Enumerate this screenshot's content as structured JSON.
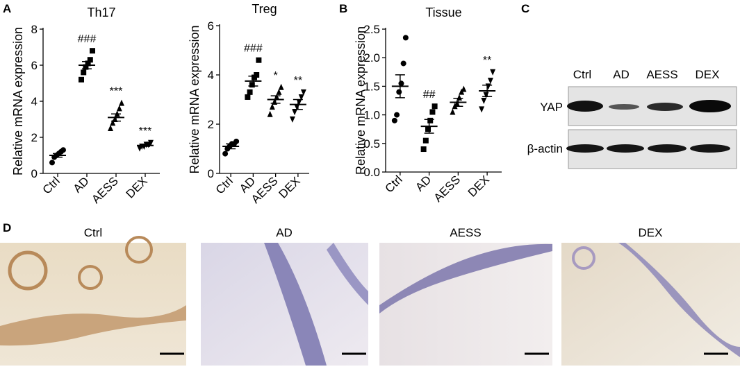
{
  "chart_data": [
    {
      "type": "dot",
      "title": "Th17",
      "ylabel": "Relative mRNA expression",
      "categories": [
        "Ctrl",
        "AD",
        "AESS",
        "DEX"
      ],
      "values": [
        1.0,
        6.0,
        3.1,
        1.55
      ],
      "errors": [
        0.1,
        0.2,
        0.2,
        0.05
      ],
      "points": [
        [
          0.6,
          0.9,
          1.0,
          1.1,
          1.2,
          1.3
        ],
        [
          5.2,
          5.6,
          5.9,
          6.1,
          6.3,
          6.8
        ],
        [
          2.5,
          2.8,
          3.0,
          3.3,
          3.6,
          3.9
        ],
        [
          1.4,
          1.5,
          1.5,
          1.6,
          1.6,
          1.7
        ]
      ],
      "annotations": [
        null,
        "###",
        "***",
        "***"
      ],
      "ylim": [
        0,
        8
      ],
      "yticks": [
        0,
        2,
        4,
        6,
        8
      ],
      "color": "#000000"
    },
    {
      "type": "dot",
      "title": "Treg",
      "ylabel": "Relative mRNA expression",
      "categories": [
        "Ctrl",
        "AD",
        "AESS",
        "DEX"
      ],
      "values": [
        1.1,
        3.75,
        3.0,
        2.8
      ],
      "errors": [
        0.1,
        0.2,
        0.15,
        0.2
      ],
      "points": [
        [
          0.8,
          1.0,
          1.1,
          1.2,
          1.2,
          1.3
        ],
        [
          3.1,
          3.3,
          3.6,
          3.9,
          4.0,
          4.6
        ],
        [
          2.4,
          2.7,
          2.9,
          3.1,
          3.3,
          3.5
        ],
        [
          2.2,
          2.5,
          2.7,
          2.9,
          3.1,
          3.3
        ]
      ],
      "annotations": [
        null,
        "###",
        "*",
        "**"
      ],
      "ylim": [
        0,
        6
      ],
      "yticks": [
        0,
        2,
        4,
        6
      ],
      "color": "#000000"
    },
    {
      "type": "dot",
      "title": "Tissue",
      "ylabel": "Relative mRNA expression",
      "categories": [
        "Ctrl",
        "AD",
        "AESS",
        "DEX"
      ],
      "values": [
        1.5,
        0.8,
        1.22,
        1.42
      ],
      "errors": [
        0.2,
        0.12,
        0.07,
        0.1
      ],
      "points": [
        [
          0.9,
          1.0,
          1.4,
          1.55,
          1.9,
          2.35
        ],
        [
          0.4,
          0.55,
          0.75,
          0.9,
          1.05,
          1.15
        ],
        [
          1.05,
          1.15,
          1.2,
          1.3,
          1.4,
          1.45
        ],
        [
          1.1,
          1.25,
          1.35,
          1.5,
          1.6,
          1.75
        ]
      ],
      "annotations": [
        null,
        "##",
        null,
        "**"
      ],
      "ylim": [
        0,
        2.5
      ],
      "yticks": [
        {
          "value": 0,
          "label": "0.0"
        },
        0.5,
        {
          "value": 1,
          "label": "1.0"
        },
        1.5,
        {
          "value": 2,
          "label": "2.0"
        },
        2.5
      ],
      "color": "#000000"
    }
  ],
  "panel_labels": [
    "A",
    "B",
    "C",
    "D"
  ],
  "blot": {
    "columns": [
      "Ctrl",
      "AD",
      "AESS",
      "DEX"
    ],
    "rows": [
      "YAP",
      "β-actin"
    ]
  },
  "histology": {
    "titles": [
      "Ctrl",
      "AD",
      "AESS",
      "DEX"
    ]
  }
}
